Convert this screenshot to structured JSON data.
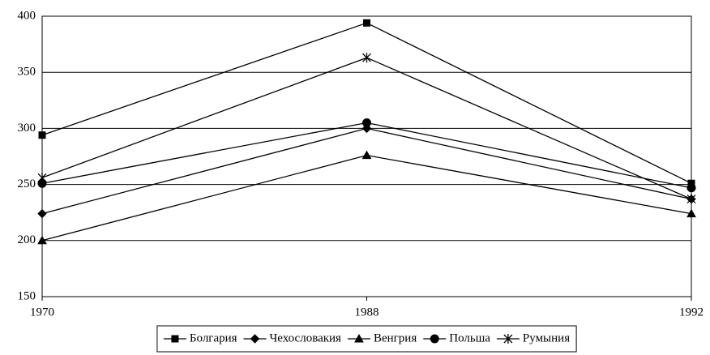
{
  "chart_data": {
    "type": "line",
    "categories": [
      "1970",
      "1988",
      "1992"
    ],
    "series": [
      {
        "name": "Болгария",
        "color": "#000000",
        "marker": "square",
        "values": [
          294,
          394,
          251
        ]
      },
      {
        "name": "Чехословакия",
        "color": "#000000",
        "marker": "diamond",
        "values": [
          224,
          300,
          237
        ]
      },
      {
        "name": "Венгрия",
        "color": "#000000",
        "marker": "triangle",
        "values": [
          200,
          276,
          224
        ]
      },
      {
        "name": "Польша",
        "color": "#000000",
        "marker": "circle",
        "values": [
          251,
          305,
          247
        ]
      },
      {
        "name": "Румыния",
        "color": "#000000",
        "marker": "asterisk",
        "values": [
          256,
          363,
          237
        ]
      }
    ],
    "ylim": [
      150,
      400
    ],
    "yticks": [
      150,
      200,
      250,
      300,
      350,
      400
    ],
    "grid": true,
    "legend": "bottom"
  }
}
